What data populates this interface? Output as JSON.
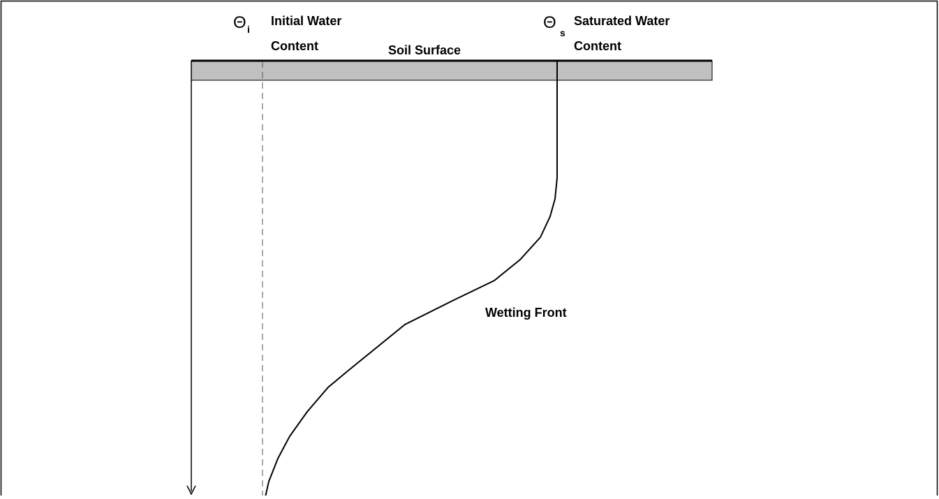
{
  "labels": {
    "theta_i": {
      "symbol": "Θ",
      "subscript": "i"
    },
    "initial": [
      "Initial Water",
      "Content"
    ],
    "soil_surface": "Soil Surface",
    "theta_s": {
      "symbol": "Θ",
      "subscript": "s"
    },
    "saturated": [
      "Saturated Water",
      "Content"
    ],
    "wetting_front": "Wetting Front"
  }
}
